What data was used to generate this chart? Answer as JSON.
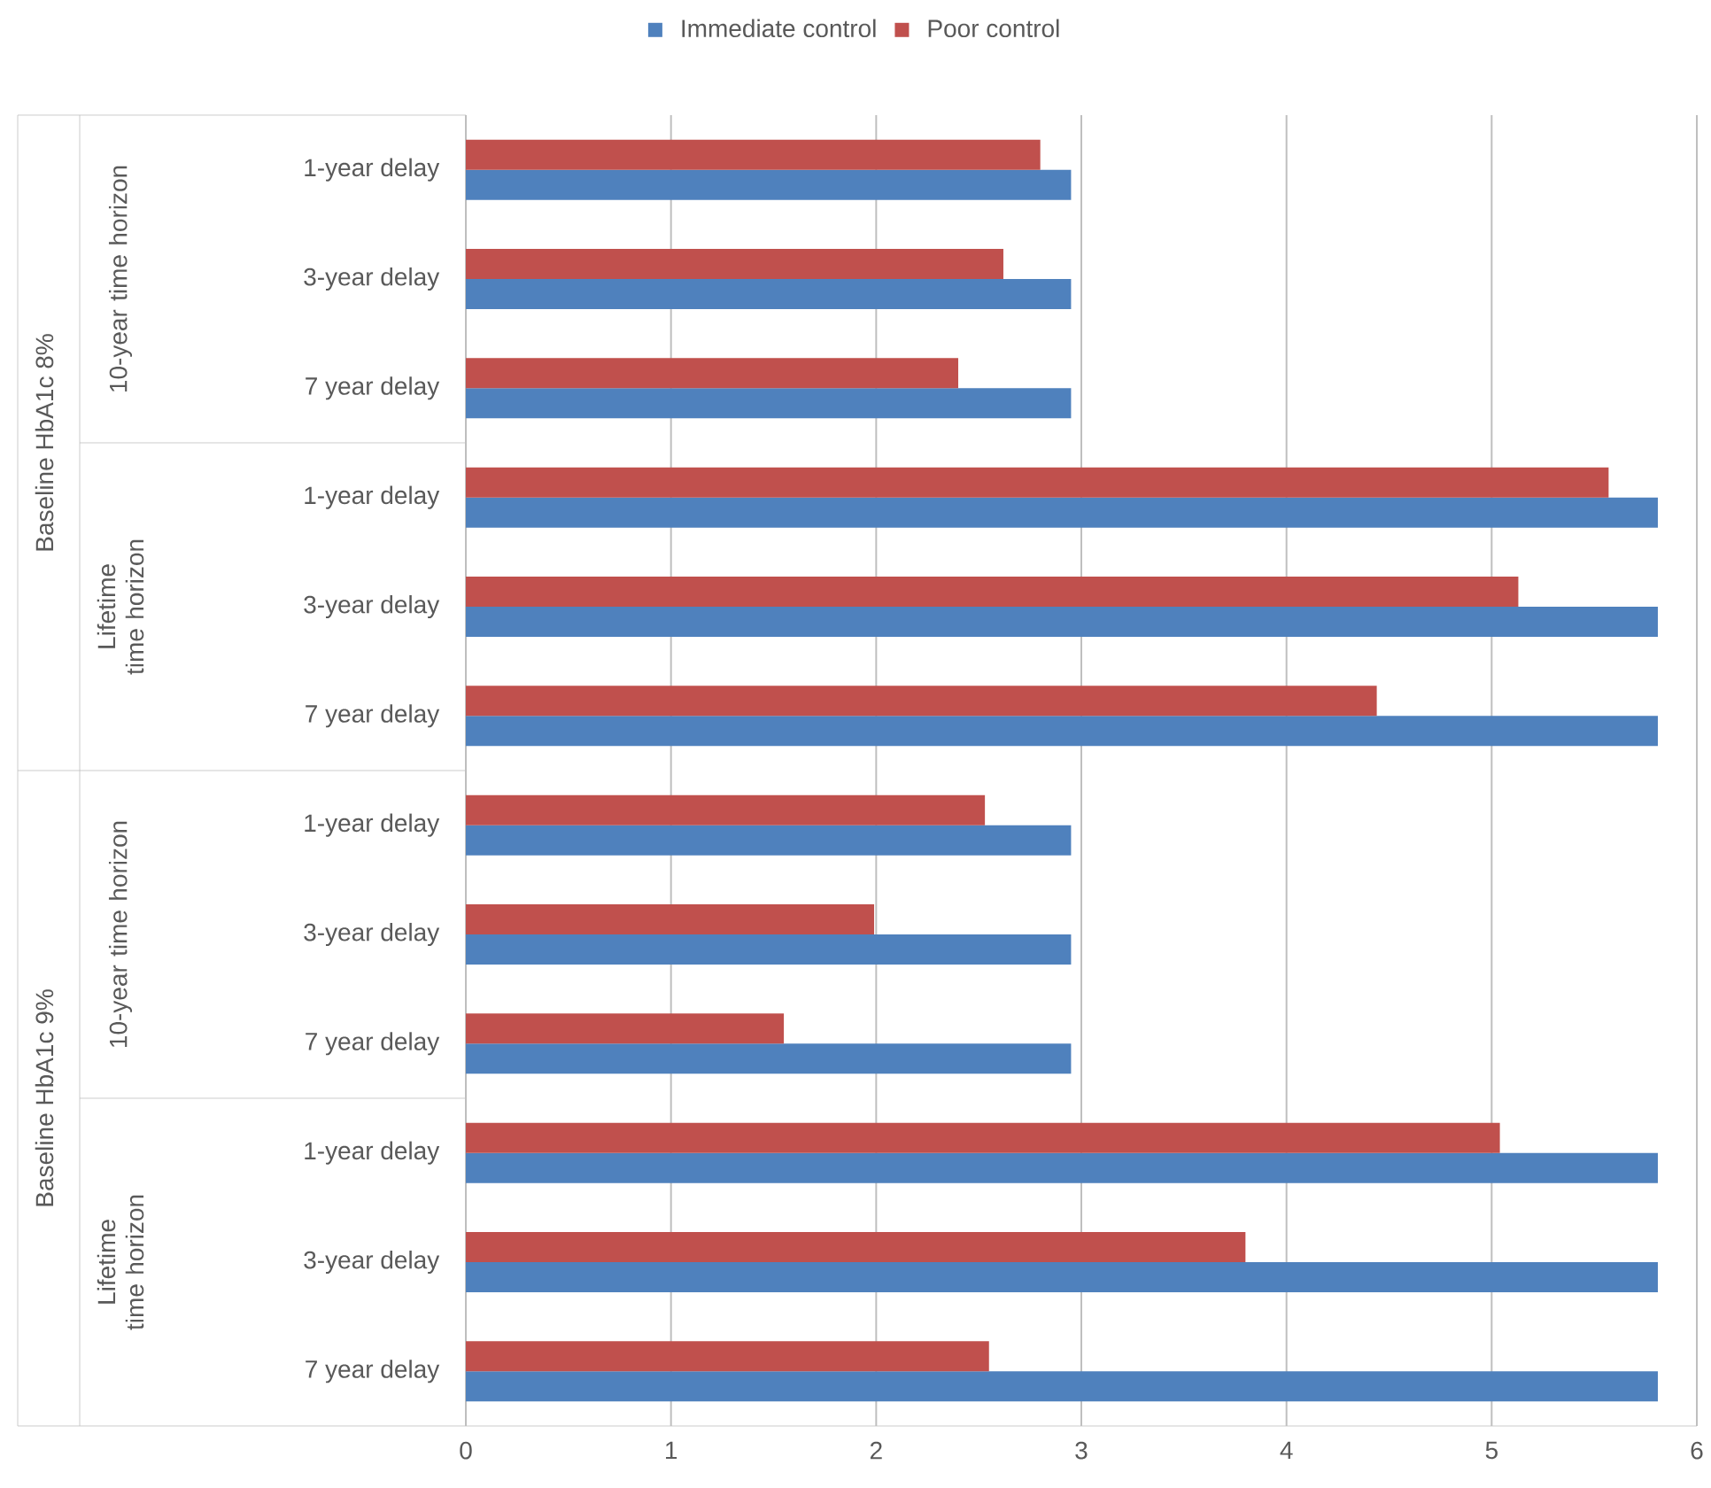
{
  "chart_data": {
    "type": "bar",
    "orientation": "horizontal",
    "categories": [
      "1-year delay",
      "3-year delay",
      "7 year delay",
      "1-year delay",
      "3-year delay",
      "7 year delay",
      "1-year delay",
      "3-year delay",
      "7 year delay",
      "1-year delay",
      "3-year delay",
      "7 year delay"
    ],
    "series": [
      {
        "name": "Immediate control",
        "color": "#4f81bd",
        "values": [
          2.95,
          2.95,
          2.95,
          5.81,
          5.81,
          5.81,
          2.95,
          2.95,
          2.95,
          5.81,
          5.81,
          5.81
        ]
      },
      {
        "name": "Poor control",
        "color": "#c0504d",
        "values": [
          2.8,
          2.62,
          2.4,
          5.57,
          5.13,
          4.44,
          2.53,
          1.99,
          1.55,
          5.04,
          3.8,
          2.55
        ]
      }
    ],
    "xlim": [
      0,
      6
    ],
    "xticks": [
      0,
      1,
      2,
      3,
      4,
      5,
      6
    ],
    "grid": "x",
    "legend": "top",
    "annotations": [
      "Baseline HbA1c 8%",
      "10-year time horizon",
      "Lifetime time horizon",
      "Baseline HbA1c 9%",
      "10-year time horizon",
      "Lifetime time horizon"
    ]
  }
}
